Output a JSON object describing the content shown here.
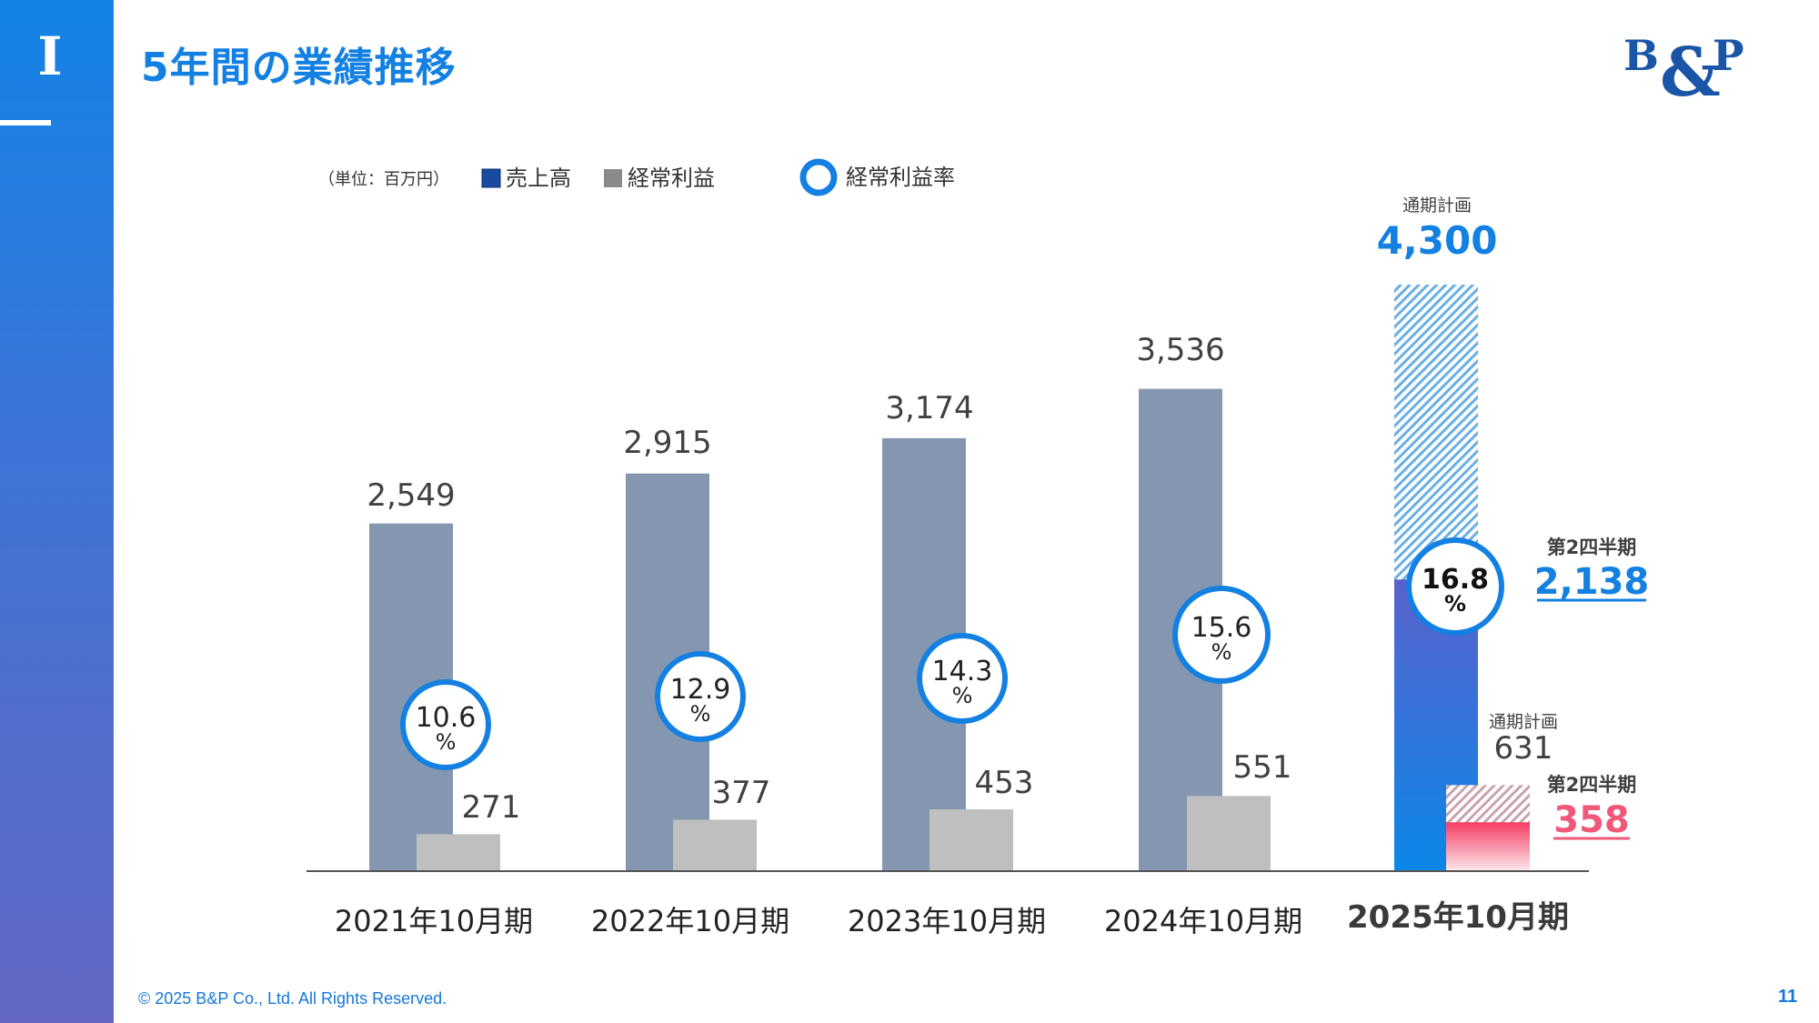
{
  "header": {
    "section_numeral": "I",
    "title": "5年間の業績推移"
  },
  "brand": {
    "logo_text": "B&P",
    "primary_color": "#1380e2",
    "bar_color": "#8597b0",
    "profit_color": "#bfbfbf",
    "accent_red": "#f0587a"
  },
  "footer": {
    "copyright": "© 2025 B&P Co., Ltd. All Rights Reserved.",
    "page_number": "11"
  },
  "chart_data": {
    "type": "bar",
    "unit_label": "（単位：百万円）",
    "legend": [
      {
        "name": "売上高",
        "color": "#1a4aa0",
        "shape": "square"
      },
      {
        "name": "経常利益",
        "color": "#8a8a8a",
        "shape": "square"
      },
      {
        "name": "経常利益率",
        "color": "#1380e2",
        "shape": "ring"
      }
    ],
    "categories": [
      "2021年10月期",
      "2022年10月期",
      "2023年10月期",
      "2024年10月期",
      "2025年10月期"
    ],
    "series": [
      {
        "name": "売上高",
        "values": [
          2549,
          2915,
          3174,
          3536,
          2138
        ],
        "labels": [
          "2,549",
          "2,915",
          "3,174",
          "3,536",
          ""
        ]
      },
      {
        "name": "経常利益",
        "values": [
          271,
          377,
          453,
          551,
          358
        ],
        "labels": [
          "271",
          "377",
          "453",
          "551",
          ""
        ]
      },
      {
        "name": "経常利益率",
        "values": [
          10.6,
          12.9,
          14.3,
          15.6,
          16.8
        ],
        "labels": [
          "10.6",
          "12.9",
          "14.3",
          "15.6",
          "16.8"
        ],
        "unit": "%"
      }
    ],
    "forecast": {
      "sales_plan": {
        "caption": "通期計画",
        "value": 4300,
        "label": "4,300"
      },
      "sales_q2": {
        "caption": "第2四半期",
        "value": 2138,
        "label": "2,138"
      },
      "profit_plan": {
        "caption": "通期計画",
        "value": 631,
        "label": "631"
      },
      "profit_q2": {
        "caption": "第2四半期",
        "value": 358,
        "label": "358"
      }
    },
    "ylim": [
      0,
      4300
    ]
  }
}
